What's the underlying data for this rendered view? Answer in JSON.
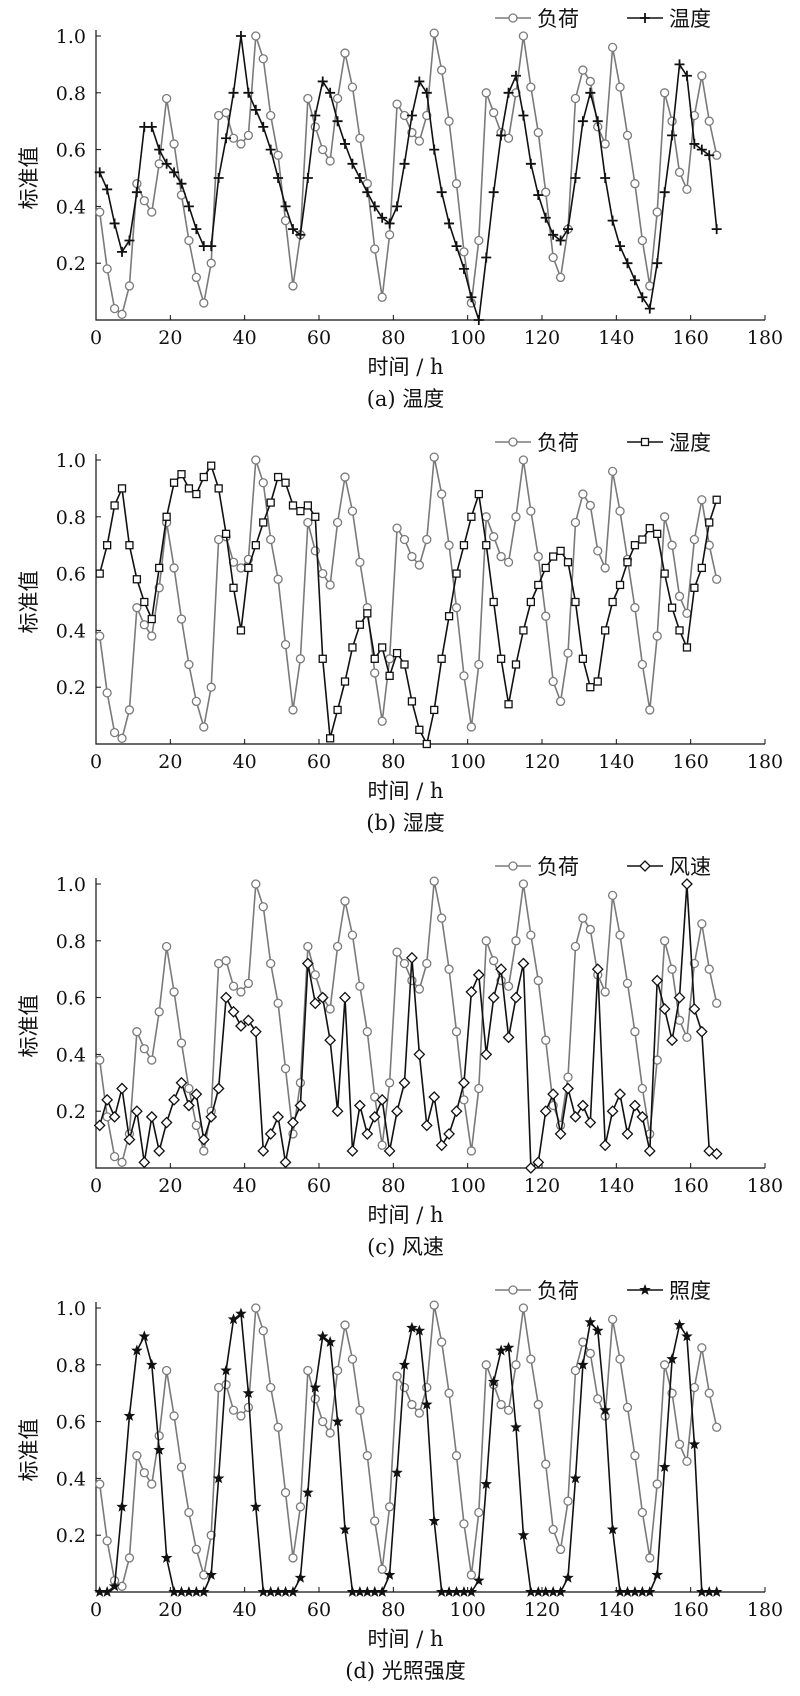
{
  "chart_data": [
    {
      "type": "line",
      "caption": "(a) 温度",
      "xlabel": "时间 / h",
      "ylabel": "标准值",
      "xlim": [
        0,
        180
      ],
      "ylim": [
        0,
        1.0
      ],
      "xticks": [
        "0",
        "20",
        "40",
        "60",
        "80",
        "100",
        "120",
        "140",
        "160",
        "180"
      ],
      "yticks": [
        "0.2",
        "0.4",
        "0.6",
        "0.8",
        "1.0"
      ],
      "legend_position": "top-right",
      "x": [
        1,
        3,
        5,
        7,
        9,
        11,
        13,
        15,
        17,
        19,
        21,
        23,
        25,
        27,
        29,
        31,
        33,
        35,
        37,
        39,
        41,
        43,
        45,
        47,
        49,
        51,
        53,
        55,
        57,
        59,
        61,
        63,
        65,
        67,
        69,
        71,
        73,
        75,
        77,
        79,
        81,
        83,
        85,
        87,
        89,
        91,
        93,
        95,
        97,
        99,
        101,
        103,
        105,
        107,
        109,
        111,
        113,
        115,
        117,
        119,
        121,
        123,
        125,
        127,
        129,
        131,
        133,
        135,
        137,
        139,
        141,
        143,
        145,
        147,
        149,
        151,
        153,
        155,
        157,
        159,
        161,
        163,
        165,
        167
      ],
      "series": [
        {
          "name": "负荷",
          "marker": "circle",
          "color": "#7a7a7a",
          "values": [
            0.38,
            0.18,
            0.04,
            0.02,
            0.12,
            0.48,
            0.42,
            0.38,
            0.55,
            0.78,
            0.62,
            0.44,
            0.28,
            0.15,
            0.06,
            0.2,
            0.72,
            0.73,
            0.64,
            0.62,
            0.65,
            1.0,
            0.92,
            0.72,
            0.58,
            0.35,
            0.12,
            0.3,
            0.78,
            0.68,
            0.6,
            0.56,
            0.78,
            0.94,
            0.82,
            0.64,
            0.48,
            0.25,
            0.08,
            0.3,
            0.76,
            0.72,
            0.66,
            0.63,
            0.72,
            1.01,
            0.88,
            0.7,
            0.48,
            0.24,
            0.06,
            0.28,
            0.8,
            0.73,
            0.66,
            0.64,
            0.8,
            1.0,
            0.82,
            0.66,
            0.45,
            0.22,
            0.15,
            0.32,
            0.78,
            0.88,
            0.84,
            0.68,
            0.62,
            0.96,
            0.82,
            0.65,
            0.48,
            0.28,
            0.12,
            0.38,
            0.8,
            0.7,
            0.52,
            0.46,
            0.72,
            0.86,
            0.7,
            0.58
          ]
        },
        {
          "name": "温度",
          "marker": "plus",
          "color": "#111111",
          "values": [
            0.52,
            0.46,
            0.34,
            0.24,
            0.28,
            0.45,
            0.68,
            0.68,
            0.6,
            0.55,
            0.52,
            0.48,
            0.4,
            0.32,
            0.26,
            0.26,
            0.5,
            0.64,
            0.8,
            1.0,
            0.8,
            0.74,
            0.68,
            0.6,
            0.5,
            0.4,
            0.32,
            0.3,
            0.5,
            0.72,
            0.84,
            0.8,
            0.7,
            0.62,
            0.55,
            0.5,
            0.45,
            0.4,
            0.36,
            0.34,
            0.4,
            0.55,
            0.72,
            0.84,
            0.8,
            0.6,
            0.45,
            0.34,
            0.26,
            0.18,
            0.08,
            0.0,
            0.22,
            0.45,
            0.65,
            0.8,
            0.86,
            0.72,
            0.55,
            0.44,
            0.36,
            0.3,
            0.28,
            0.32,
            0.5,
            0.7,
            0.8,
            0.7,
            0.5,
            0.35,
            0.26,
            0.2,
            0.14,
            0.08,
            0.04,
            0.2,
            0.45,
            0.65,
            0.9,
            0.86,
            0.62,
            0.6,
            0.58,
            0.32
          ]
        }
      ]
    },
    {
      "type": "line",
      "caption": "(b) 湿度",
      "xlabel": "时间 / h",
      "ylabel": "标准值",
      "xlim": [
        0,
        180
      ],
      "ylim": [
        0,
        1.0
      ],
      "xticks": [
        "0",
        "20",
        "40",
        "60",
        "80",
        "100",
        "120",
        "140",
        "160",
        "180"
      ],
      "yticks": [
        "0.2",
        "0.4",
        "0.6",
        "0.8",
        "1.0"
      ],
      "legend_position": "top-right",
      "x": [
        1,
        3,
        5,
        7,
        9,
        11,
        13,
        15,
        17,
        19,
        21,
        23,
        25,
        27,
        29,
        31,
        33,
        35,
        37,
        39,
        41,
        43,
        45,
        47,
        49,
        51,
        53,
        55,
        57,
        59,
        61,
        63,
        65,
        67,
        69,
        71,
        73,
        75,
        77,
        79,
        81,
        83,
        85,
        87,
        89,
        91,
        93,
        95,
        97,
        99,
        101,
        103,
        105,
        107,
        109,
        111,
        113,
        115,
        117,
        119,
        121,
        123,
        125,
        127,
        129,
        131,
        133,
        135,
        137,
        139,
        141,
        143,
        145,
        147,
        149,
        151,
        153,
        155,
        157,
        159,
        161,
        163,
        165,
        167
      ],
      "series": [
        {
          "name": "负荷",
          "marker": "circle",
          "color": "#7a7a7a",
          "values": [
            0.38,
            0.18,
            0.04,
            0.02,
            0.12,
            0.48,
            0.42,
            0.38,
            0.55,
            0.78,
            0.62,
            0.44,
            0.28,
            0.15,
            0.06,
            0.2,
            0.72,
            0.73,
            0.64,
            0.62,
            0.65,
            1.0,
            0.92,
            0.72,
            0.58,
            0.35,
            0.12,
            0.3,
            0.78,
            0.68,
            0.6,
            0.56,
            0.78,
            0.94,
            0.82,
            0.64,
            0.48,
            0.25,
            0.08,
            0.3,
            0.76,
            0.72,
            0.66,
            0.63,
            0.72,
            1.01,
            0.88,
            0.7,
            0.48,
            0.24,
            0.06,
            0.28,
            0.8,
            0.73,
            0.66,
            0.64,
            0.8,
            1.0,
            0.82,
            0.66,
            0.45,
            0.22,
            0.15,
            0.32,
            0.78,
            0.88,
            0.84,
            0.68,
            0.62,
            0.96,
            0.82,
            0.65,
            0.48,
            0.28,
            0.12,
            0.38,
            0.8,
            0.7,
            0.52,
            0.46,
            0.72,
            0.86,
            0.7,
            0.58
          ]
        },
        {
          "name": "湿度",
          "marker": "square",
          "color": "#111111",
          "values": [
            0.6,
            0.7,
            0.84,
            0.9,
            0.7,
            0.58,
            0.5,
            0.44,
            0.62,
            0.8,
            0.92,
            0.95,
            0.9,
            0.88,
            0.94,
            0.98,
            0.9,
            0.74,
            0.55,
            0.4,
            0.62,
            0.7,
            0.78,
            0.85,
            0.94,
            0.92,
            0.84,
            0.82,
            0.84,
            0.8,
            0.3,
            0.02,
            0.12,
            0.22,
            0.34,
            0.42,
            0.46,
            0.3,
            0.34,
            0.24,
            0.32,
            0.28,
            0.15,
            0.05,
            0.0,
            0.12,
            0.3,
            0.45,
            0.6,
            0.7,
            0.8,
            0.88,
            0.7,
            0.5,
            0.3,
            0.14,
            0.28,
            0.4,
            0.5,
            0.56,
            0.62,
            0.66,
            0.68,
            0.64,
            0.5,
            0.3,
            0.2,
            0.22,
            0.4,
            0.5,
            0.56,
            0.64,
            0.7,
            0.72,
            0.76,
            0.74,
            0.6,
            0.48,
            0.4,
            0.34,
            0.55,
            0.62,
            0.78,
            0.86
          ]
        }
      ]
    },
    {
      "type": "line",
      "caption": "(c) 风速",
      "xlabel": "时间 / h",
      "ylabel": "标准值",
      "xlim": [
        0,
        180
      ],
      "ylim": [
        0,
        1.0
      ],
      "xticks": [
        "0",
        "20",
        "40",
        "60",
        "80",
        "100",
        "120",
        "140",
        "160",
        "180"
      ],
      "yticks": [
        "0.2",
        "0.4",
        "0.6",
        "0.8",
        "1.0"
      ],
      "legend_position": "top-right",
      "x": [
        1,
        3,
        5,
        7,
        9,
        11,
        13,
        15,
        17,
        19,
        21,
        23,
        25,
        27,
        29,
        31,
        33,
        35,
        37,
        39,
        41,
        43,
        45,
        47,
        49,
        51,
        53,
        55,
        57,
        59,
        61,
        63,
        65,
        67,
        69,
        71,
        73,
        75,
        77,
        79,
        81,
        83,
        85,
        87,
        89,
        91,
        93,
        95,
        97,
        99,
        101,
        103,
        105,
        107,
        109,
        111,
        113,
        115,
        117,
        119,
        121,
        123,
        125,
        127,
        129,
        131,
        133,
        135,
        137,
        139,
        141,
        143,
        145,
        147,
        149,
        151,
        153,
        155,
        157,
        159,
        161,
        163,
        165,
        167
      ],
      "series": [
        {
          "name": "负荷",
          "marker": "circle",
          "color": "#7a7a7a",
          "values": [
            0.38,
            0.18,
            0.04,
            0.02,
            0.12,
            0.48,
            0.42,
            0.38,
            0.55,
            0.78,
            0.62,
            0.44,
            0.28,
            0.15,
            0.06,
            0.2,
            0.72,
            0.73,
            0.64,
            0.62,
            0.65,
            1.0,
            0.92,
            0.72,
            0.58,
            0.35,
            0.12,
            0.3,
            0.78,
            0.68,
            0.6,
            0.56,
            0.78,
            0.94,
            0.82,
            0.64,
            0.48,
            0.25,
            0.08,
            0.3,
            0.76,
            0.72,
            0.66,
            0.63,
            0.72,
            1.01,
            0.88,
            0.7,
            0.48,
            0.24,
            0.06,
            0.28,
            0.8,
            0.73,
            0.66,
            0.64,
            0.8,
            1.0,
            0.82,
            0.66,
            0.45,
            0.22,
            0.15,
            0.32,
            0.78,
            0.88,
            0.84,
            0.68,
            0.62,
            0.96,
            0.82,
            0.65,
            0.48,
            0.28,
            0.12,
            0.38,
            0.8,
            0.7,
            0.52,
            0.46,
            0.72,
            0.86,
            0.7,
            0.58
          ]
        },
        {
          "name": "风速",
          "marker": "diamond",
          "color": "#111111",
          "values": [
            0.15,
            0.24,
            0.18,
            0.28,
            0.1,
            0.2,
            0.02,
            0.18,
            0.06,
            0.16,
            0.24,
            0.3,
            0.22,
            0.26,
            0.1,
            0.18,
            0.28,
            0.6,
            0.55,
            0.5,
            0.52,
            0.48,
            0.06,
            0.12,
            0.18,
            0.02,
            0.16,
            0.22,
            0.72,
            0.58,
            0.6,
            0.45,
            0.2,
            0.6,
            0.06,
            0.22,
            0.12,
            0.18,
            0.24,
            0.06,
            0.2,
            0.3,
            0.74,
            0.4,
            0.15,
            0.25,
            0.08,
            0.12,
            0.2,
            0.3,
            0.62,
            0.68,
            0.4,
            0.6,
            0.7,
            0.46,
            0.6,
            0.72,
            0.0,
            0.02,
            0.2,
            0.26,
            0.12,
            0.28,
            0.18,
            0.22,
            0.16,
            0.7,
            0.08,
            0.2,
            0.26,
            0.12,
            0.22,
            0.18,
            0.06,
            0.66,
            0.56,
            0.45,
            0.6,
            1.0,
            0.56,
            0.48,
            0.06,
            0.05
          ]
        }
      ]
    },
    {
      "type": "line",
      "caption": "(d) 光照强度",
      "xlabel": "时间 / h",
      "ylabel": "标准值",
      "xlim": [
        0,
        180
      ],
      "ylim": [
        0,
        1.0
      ],
      "xticks": [
        "0",
        "20",
        "40",
        "60",
        "80",
        "100",
        "120",
        "140",
        "160",
        "180"
      ],
      "yticks": [
        "0.2",
        "0.4",
        "0.6",
        "0.8",
        "1.0"
      ],
      "legend_position": "top-right",
      "x": [
        1,
        3,
        5,
        7,
        9,
        11,
        13,
        15,
        17,
        19,
        21,
        23,
        25,
        27,
        29,
        31,
        33,
        35,
        37,
        39,
        41,
        43,
        45,
        47,
        49,
        51,
        53,
        55,
        57,
        59,
        61,
        63,
        65,
        67,
        69,
        71,
        73,
        75,
        77,
        79,
        81,
        83,
        85,
        87,
        89,
        91,
        93,
        95,
        97,
        99,
        101,
        103,
        105,
        107,
        109,
        111,
        113,
        115,
        117,
        119,
        121,
        123,
        125,
        127,
        129,
        131,
        133,
        135,
        137,
        139,
        141,
        143,
        145,
        147,
        149,
        151,
        153,
        155,
        157,
        159,
        161,
        163,
        165,
        167
      ],
      "series": [
        {
          "name": "负荷",
          "marker": "circle",
          "color": "#7a7a7a",
          "values": [
            0.38,
            0.18,
            0.04,
            0.02,
            0.12,
            0.48,
            0.42,
            0.38,
            0.55,
            0.78,
            0.62,
            0.44,
            0.28,
            0.15,
            0.06,
            0.2,
            0.72,
            0.73,
            0.64,
            0.62,
            0.65,
            1.0,
            0.92,
            0.72,
            0.58,
            0.35,
            0.12,
            0.3,
            0.78,
            0.68,
            0.6,
            0.56,
            0.78,
            0.94,
            0.82,
            0.64,
            0.48,
            0.25,
            0.08,
            0.3,
            0.76,
            0.72,
            0.66,
            0.63,
            0.72,
            1.01,
            0.88,
            0.7,
            0.48,
            0.24,
            0.06,
            0.28,
            0.8,
            0.73,
            0.66,
            0.64,
            0.8,
            1.0,
            0.82,
            0.66,
            0.45,
            0.22,
            0.15,
            0.32,
            0.78,
            0.88,
            0.84,
            0.68,
            0.62,
            0.96,
            0.82,
            0.65,
            0.48,
            0.28,
            0.12,
            0.38,
            0.8,
            0.7,
            0.52,
            0.46,
            0.72,
            0.86,
            0.7,
            0.58
          ]
        },
        {
          "name": "照度",
          "marker": "star",
          "color": "#111111",
          "values": [
            0.0,
            0.0,
            0.02,
            0.3,
            0.62,
            0.85,
            0.9,
            0.8,
            0.5,
            0.12,
            0.0,
            0.0,
            0.0,
            0.0,
            0.0,
            0.06,
            0.4,
            0.78,
            0.96,
            0.98,
            0.7,
            0.3,
            0.0,
            0.0,
            0.0,
            0.0,
            0.0,
            0.05,
            0.35,
            0.72,
            0.9,
            0.88,
            0.6,
            0.22,
            0.0,
            0.0,
            0.0,
            0.0,
            0.0,
            0.06,
            0.42,
            0.8,
            0.93,
            0.92,
            0.66,
            0.25,
            0.0,
            0.0,
            0.0,
            0.0,
            0.0,
            0.04,
            0.38,
            0.74,
            0.85,
            0.86,
            0.58,
            0.2,
            0.0,
            0.0,
            0.0,
            0.0,
            0.0,
            0.05,
            0.4,
            0.8,
            0.95,
            0.92,
            0.64,
            0.22,
            0.0,
            0.0,
            0.0,
            0.0,
            0.0,
            0.06,
            0.44,
            0.82,
            0.94,
            0.9,
            0.52,
            0.0,
            0.0,
            0.0
          ]
        }
      ]
    }
  ]
}
